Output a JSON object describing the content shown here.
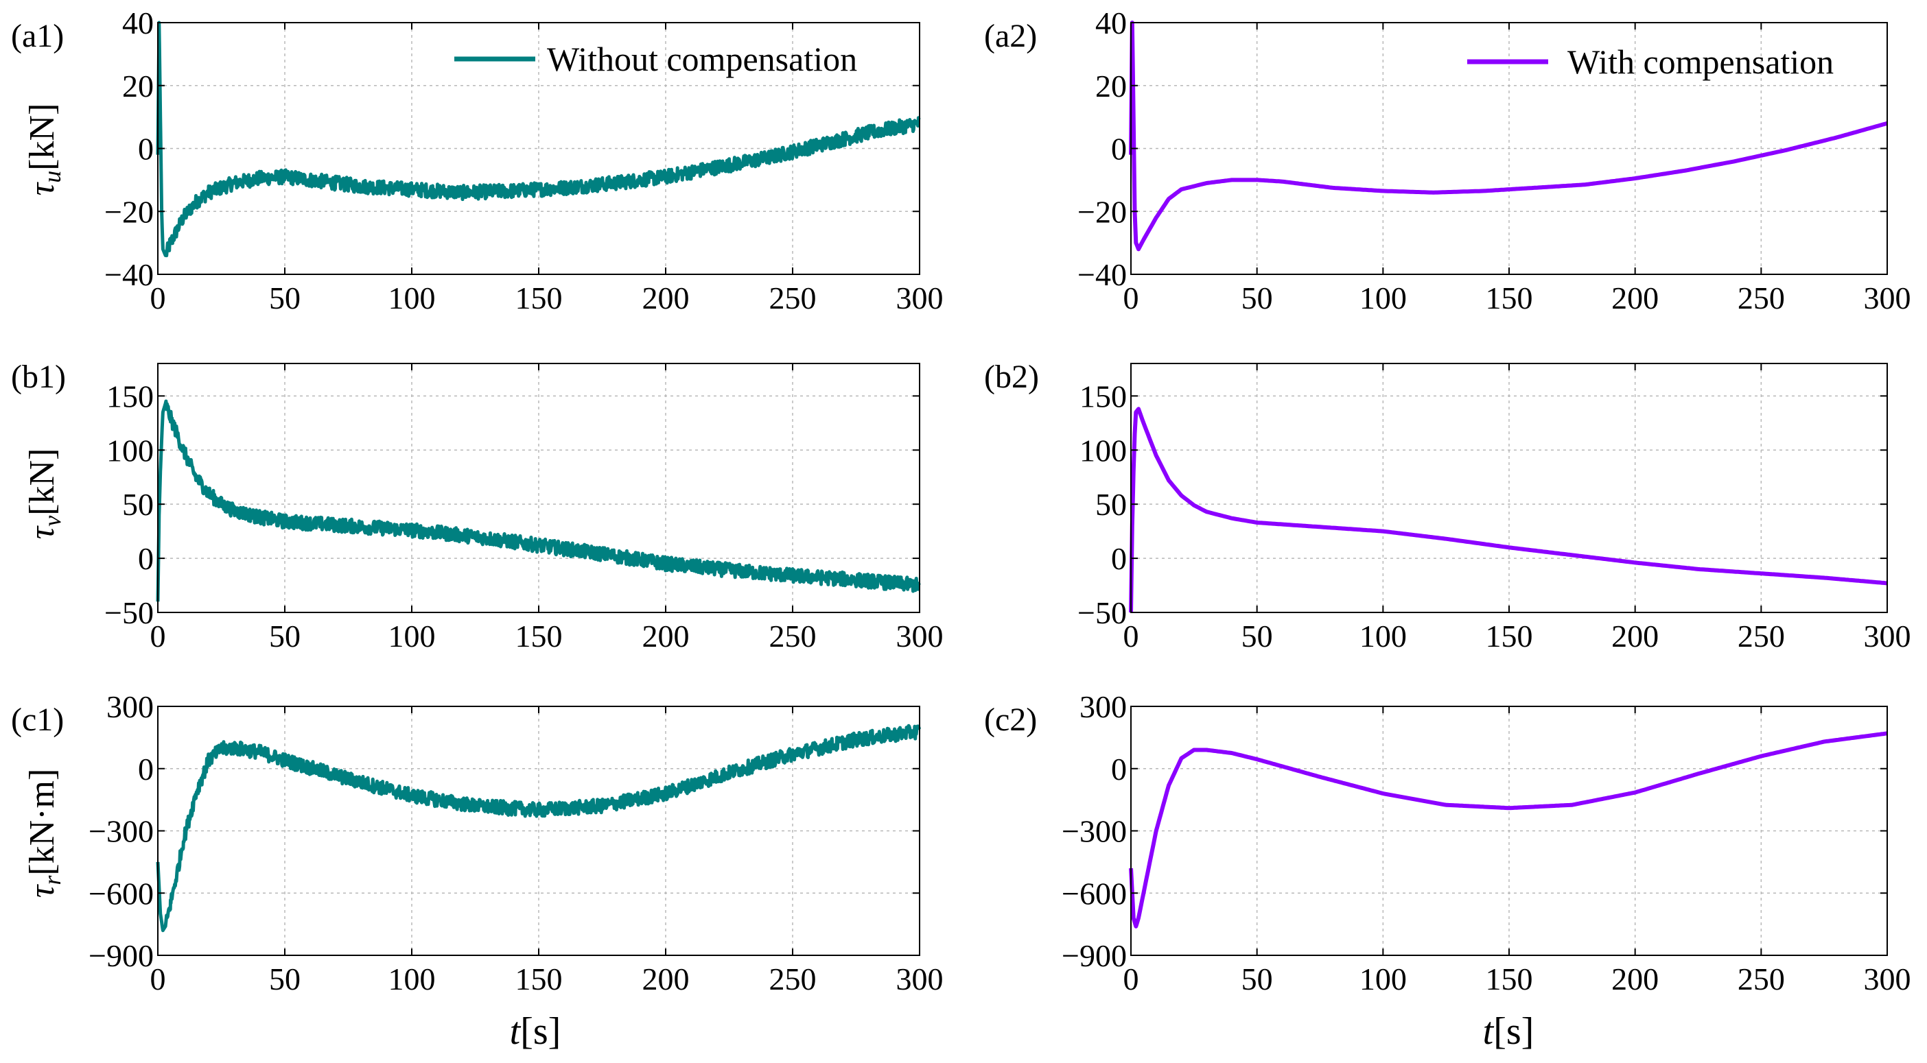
{
  "figure": {
    "xlabel_italic": "t",
    "xlabel_unit": "[s]"
  },
  "legend": {
    "without": "Without compensation",
    "with": "With compensation"
  },
  "colors": {
    "without": "#008080",
    "with": "#8b00ff"
  },
  "rows": [
    {
      "sym": "τ",
      "sub": "u",
      "unit": "[kN]"
    },
    {
      "sym": "τ",
      "sub": "v",
      "unit": "[kN]"
    },
    {
      "sym": "τ",
      "sub": "r",
      "unit": "[kN·m]"
    }
  ],
  "chart_data": [
    {
      "id": "a1",
      "label": "(a1)",
      "type": "line",
      "series_name": "Without compensation",
      "noisy": true,
      "xlim": [
        0,
        300
      ],
      "xticks": [
        0,
        50,
        100,
        150,
        200,
        250,
        300
      ],
      "ylim": [
        -40,
        40
      ],
      "yticks": [
        -40,
        -20,
        0,
        20,
        40
      ],
      "x": [
        0,
        0.5,
        1,
        1.5,
        2,
        3,
        5,
        10,
        15,
        20,
        30,
        40,
        50,
        60,
        70,
        80,
        100,
        120,
        140,
        160,
        180,
        200,
        220,
        240,
        260,
        280,
        300
      ],
      "y": [
        -2,
        40,
        10,
        -20,
        -32,
        -34,
        -30,
        -22,
        -17,
        -14,
        -11,
        -9.5,
        -9,
        -10,
        -11,
        -12,
        -13,
        -14,
        -13.5,
        -12.5,
        -11,
        -9,
        -6,
        -3,
        1,
        5,
        8
      ]
    },
    {
      "id": "a2",
      "label": "(a2)",
      "type": "line",
      "series_name": "With compensation",
      "noisy": false,
      "xlim": [
        0,
        300
      ],
      "xticks": [
        0,
        50,
        100,
        150,
        200,
        250,
        300
      ],
      "ylim": [
        -40,
        40
      ],
      "yticks": [
        -40,
        -20,
        0,
        20,
        40
      ],
      "x": [
        0,
        0.5,
        1,
        1.5,
        2,
        3,
        5,
        10,
        15,
        20,
        30,
        40,
        50,
        60,
        70,
        80,
        100,
        120,
        140,
        160,
        180,
        200,
        220,
        240,
        260,
        280,
        300
      ],
      "y": [
        -2,
        40,
        10,
        -20,
        -30,
        -32,
        -29,
        -22,
        -16,
        -13,
        -11,
        -10,
        -10,
        -10.5,
        -11.5,
        -12.5,
        -13.5,
        -14,
        -13.5,
        -12.5,
        -11.5,
        -9.5,
        -7,
        -4,
        -0.5,
        3.5,
        8
      ]
    },
    {
      "id": "b1",
      "label": "(b1)",
      "type": "line",
      "series_name": "Without compensation",
      "noisy": true,
      "xlim": [
        0,
        300
      ],
      "xticks": [
        0,
        50,
        100,
        150,
        200,
        250,
        300
      ],
      "ylim": [
        -50,
        180
      ],
      "yticks": [
        -50,
        0,
        50,
        100,
        150
      ],
      "x": [
        0,
        0.5,
        1,
        1.5,
        2,
        3,
        5,
        10,
        15,
        20,
        25,
        30,
        40,
        50,
        75,
        100,
        125,
        150,
        175,
        200,
        225,
        250,
        275,
        300
      ],
      "y": [
        -40,
        40,
        80,
        110,
        135,
        143,
        130,
        100,
        75,
        60,
        50,
        44,
        38,
        34,
        30,
        26,
        20,
        12,
        4,
        -5,
        -11,
        -16,
        -20,
        -25
      ]
    },
    {
      "id": "b2",
      "label": "(b2)",
      "type": "line",
      "series_name": "With compensation",
      "noisy": false,
      "xlim": [
        0,
        300
      ],
      "xticks": [
        0,
        50,
        100,
        150,
        200,
        250,
        300
      ],
      "ylim": [
        -50,
        180
      ],
      "yticks": [
        -50,
        0,
        50,
        100,
        150
      ],
      "x": [
        0,
        0.5,
        1,
        1.5,
        2,
        3,
        5,
        10,
        15,
        20,
        25,
        30,
        40,
        50,
        75,
        100,
        125,
        150,
        175,
        200,
        225,
        250,
        275,
        300
      ],
      "y": [
        -50,
        30,
        80,
        115,
        135,
        138,
        125,
        95,
        72,
        58,
        49,
        43,
        37,
        33,
        29,
        25,
        18,
        10,
        3,
        -4,
        -10,
        -14,
        -18,
        -23
      ]
    },
    {
      "id": "c1",
      "label": "(c1)",
      "type": "line",
      "series_name": "Without compensation",
      "noisy": true,
      "xlim": [
        0,
        300
      ],
      "xticks": [
        0,
        50,
        100,
        150,
        200,
        250,
        300
      ],
      "ylim": [
        -900,
        300
      ],
      "yticks": [
        -900,
        -600,
        -300,
        0,
        300
      ],
      "x": [
        0,
        1,
        2,
        3,
        5,
        8,
        10,
        15,
        20,
        25,
        30,
        40,
        50,
        75,
        100,
        125,
        150,
        175,
        200,
        225,
        250,
        275,
        300
      ],
      "y": [
        -450,
        -700,
        -780,
        -760,
        -650,
        -480,
        -350,
        -120,
        40,
        95,
        100,
        80,
        40,
        -50,
        -130,
        -180,
        -200,
        -180,
        -120,
        -20,
        70,
        140,
        180
      ]
    },
    {
      "id": "c2",
      "label": "(c2)",
      "type": "line",
      "series_name": "With compensation",
      "noisy": false,
      "xlim": [
        0,
        300
      ],
      "xticks": [
        0,
        50,
        100,
        150,
        200,
        250,
        300
      ],
      "ylim": [
        -900,
        300
      ],
      "yticks": [
        -900,
        -600,
        -300,
        0,
        300
      ],
      "x": [
        0,
        1,
        2,
        3,
        5,
        8,
        10,
        15,
        20,
        25,
        30,
        40,
        50,
        75,
        100,
        125,
        150,
        175,
        200,
        225,
        250,
        275,
        300
      ],
      "y": [
        -480,
        -720,
        -760,
        -720,
        -600,
        -420,
        -300,
        -80,
        50,
        90,
        90,
        75,
        45,
        -40,
        -120,
        -175,
        -190,
        -175,
        -115,
        -25,
        60,
        130,
        170
      ]
    }
  ]
}
